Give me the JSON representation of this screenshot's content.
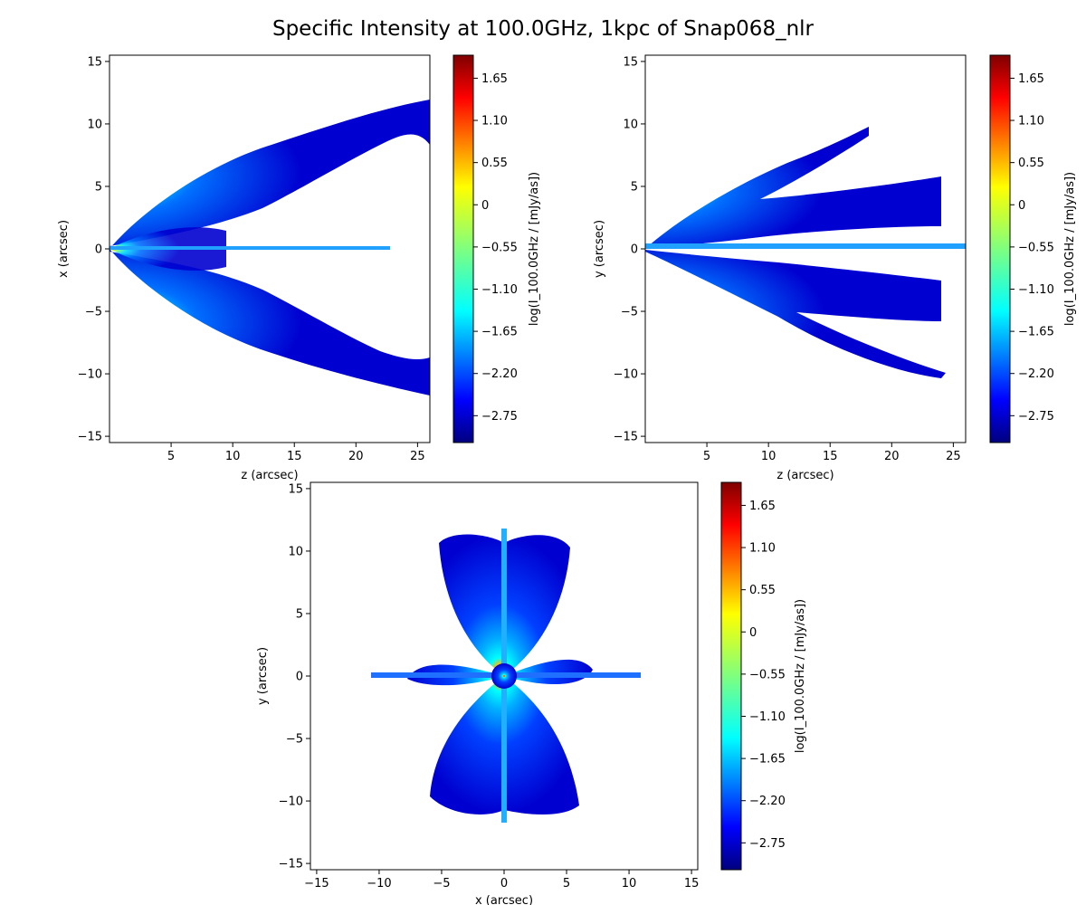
{
  "figure": {
    "title": "Specific Intensity at 100.0GHz, 1kpc of Snap068_nlr"
  },
  "colors": {
    "background": "#ffffff",
    "axis": "#000000",
    "colormap": [
      "#00007f",
      "#0000ff",
      "#007fff",
      "#00ffff",
      "#7fff7f",
      "#ffff00",
      "#ff7f00",
      "#ff0000",
      "#7f0000"
    ]
  },
  "chart_data": [
    {
      "type": "heatmap",
      "panel": "top-left",
      "xlabel": "z (arcsec)",
      "ylabel": "x (arcsec)",
      "xlim": [
        0,
        26
      ],
      "ylim": [
        -15.5,
        15.5
      ],
      "xticks": [
        5,
        10,
        15,
        20,
        25
      ],
      "yticks": [
        -15,
        -10,
        -5,
        0,
        5,
        10,
        15
      ],
      "colorbar": {
        "label": "log(I_100.0GHz / [mJy/as])",
        "ticks": [
          1.65,
          1.1,
          0.55,
          0.0,
          -0.55,
          -1.1,
          -1.65,
          -2.2,
          -2.75
        ],
        "range": [
          -3.1,
          1.95
        ]
      },
      "emission": {
        "peak_at": [
          0,
          0
        ],
        "outer_edge_x_at_z25": 11.5,
        "inner_edge_x_at_z25": 6.0,
        "jet_x": 0.0,
        "jet_end_z": 22
      }
    },
    {
      "type": "heatmap",
      "panel": "top-right",
      "xlabel": "z (arcsec)",
      "ylabel": "y (arcsec)",
      "xlim": [
        0,
        26
      ],
      "ylim": [
        -15.5,
        15.5
      ],
      "xticks": [
        5,
        10,
        15,
        20,
        25
      ],
      "yticks": [
        -15,
        -10,
        -5,
        0,
        5,
        10,
        15
      ],
      "colorbar": {
        "label": "log(I_100.0GHz / [mJy/as])",
        "ticks": [
          1.65,
          1.1,
          0.55,
          0.0,
          -0.55,
          -1.1,
          -1.65,
          -2.2,
          -2.75
        ],
        "range": [
          -3.1,
          1.95
        ]
      },
      "emission": {
        "peak_at": [
          0,
          0
        ],
        "outer_edge_y_at_z25": 10,
        "jet_y": 0.3,
        "jet_end_z": 26
      }
    },
    {
      "type": "heatmap",
      "panel": "bottom",
      "xlabel": "x (arcsec)",
      "ylabel": "y (arcsec)",
      "xlim": [
        -15.5,
        15.5
      ],
      "ylim": [
        -15.5,
        15.5
      ],
      "xticks": [
        -15,
        -10,
        -5,
        0,
        5,
        10,
        15
      ],
      "yticks": [
        -15,
        -10,
        -5,
        0,
        5,
        10,
        15
      ],
      "colorbar": {
        "label": "log(I_100.0GHz / [mJy/as])",
        "ticks": [
          1.65,
          1.1,
          0.55,
          0.0,
          -0.55,
          -1.1,
          -1.65,
          -2.2,
          -2.75
        ],
        "range": [
          -3.1,
          1.95
        ]
      },
      "emission": {
        "peak_at": [
          0,
          0
        ],
        "lobe_extent_y": 10.5,
        "lobe_extent_x": 5.5,
        "jet_extent_x": 11,
        "jet_extent_y": 12
      }
    }
  ]
}
